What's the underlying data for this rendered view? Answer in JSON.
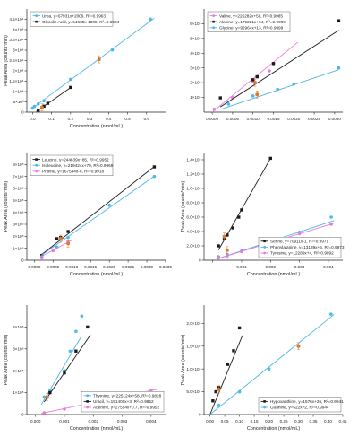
{
  "figure": {
    "background": "#ffffff",
    "marker_colors": {
      "black": "#1a1a1a",
      "cyan": "#4db8e8",
      "pink": "#e87be0",
      "orange": "#e2782d"
    }
  },
  "chart_data": [
    {
      "type": "scatter",
      "xlabel": "Concentration (nmol/mL)",
      "ylabel": "Peak Area (counts*min)",
      "xlim": [
        -0.03,
        0.7
      ],
      "ylim": [
        0,
        50000
      ],
      "x_ticks": [
        0.0,
        0.1,
        0.2,
        0.3,
        0.4,
        0.5,
        0.6
      ],
      "x_tick_labels": [
        "0.0",
        "0.1",
        "0.2",
        "0.3",
        "0.4",
        "0.5",
        "0.6"
      ],
      "y_ticks": [
        0,
        5000,
        10000,
        15000,
        20000,
        25000,
        30000,
        35000,
        40000,
        45000
      ],
      "y_tick_labels": [
        "0",
        "5×10³",
        "1×10⁴",
        "1.5×10⁴",
        "2×10⁴",
        "2.5×10⁴",
        "3×10⁴",
        "3.5×10⁴",
        "4×10⁴",
        "4.5×10⁴"
      ],
      "legend_position": "top-left",
      "series": [
        {
          "name": "Urea, y=67931x+2009, R²=0.9963",
          "color": "#4db8e8",
          "marker": "circle",
          "x": [
            0.0,
            0.01,
            0.03,
            0.06,
            0.2,
            0.35,
            0.42,
            0.62
          ],
          "y": [
            2000,
            2800,
            4000,
            5500,
            15900,
            25600,
            30200,
            45100
          ],
          "fit": [
            [
              -0.01,
              1330
            ],
            [
              0.64,
              45480
            ]
          ]
        },
        {
          "name": "Glycolic Acid, y=64635x-1005, R²=0.9984",
          "color": "#1a1a1a",
          "marker": "square",
          "x": [
            0.03,
            0.05,
            0.06,
            0.08,
            0.2
          ],
          "y": [
            900,
            2300,
            2900,
            4300,
            12000
          ],
          "fit": [
            [
              0.02,
              300
            ],
            [
              0.2,
              11900
            ]
          ]
        }
      ],
      "highlight_points": [
        {
          "x": 0.35,
          "y": 25600
        },
        {
          "x": 0.05,
          "y": 2300
        }
      ]
    },
    {
      "type": "scatter",
      "xlabel": "",
      "ylabel": "",
      "xlim": [
        -0.0002,
        0.0032
      ],
      "ylim": [
        0,
        700000
      ],
      "x_ticks": [
        0.0,
        0.0005,
        0.001,
        0.0015,
        0.002,
        0.0025,
        0.003
      ],
      "x_tick_labels": [
        "0.0000",
        "0.0005",
        "0.0010",
        "0.0015",
        "0.0020",
        "0.0025",
        "0.0030"
      ],
      "y_ticks": [
        100000,
        200000,
        300000,
        400000,
        500000,
        600000
      ],
      "y_tick_labels": [
        "1×10⁵",
        "2×10⁵",
        "3×10⁵",
        "4×10⁵",
        "5×10⁵",
        "6×10⁵"
      ],
      "legend_position": "top-left",
      "series": [
        {
          "name": "Valine, y=226282x+50, R²=0.9985",
          "color": "#e87be0",
          "marker": "circle",
          "x": [
            5e-05,
            0.0005,
            0.001,
            0.0014,
            0.0015
          ],
          "y": [
            20000,
            100000,
            210000,
            280000,
            330000
          ],
          "fit": [
            [
              0.0,
              50
            ],
            [
              0.0021,
              475250
            ]
          ]
        },
        {
          "name": "Alanine, y=179221x+64, R²=0.9999",
          "color": "#1a1a1a",
          "marker": "square",
          "x": [
            0.0002,
            0.001,
            0.0011,
            0.0015,
            0.0031
          ],
          "y": [
            97000,
            220000,
            240000,
            330000,
            620000
          ],
          "fit": [
            [
              0.0002,
              35900
            ],
            [
              0.0031,
              555650
            ]
          ]
        },
        {
          "name": "Glycine, y=92964x+13, R²=0.9999",
          "color": "#4db8e8",
          "marker": "circle",
          "x": [
            0.0004,
            0.001,
            0.0016,
            0.002,
            0.0031
          ],
          "y": [
            55000,
            110000,
            155000,
            190000,
            300000
          ],
          "fit": [
            [
              0.0002,
              18600
            ],
            [
              0.0031,
              288200
            ]
          ]
        }
      ],
      "highlight_points": [
        {
          "x": 0.00105,
          "y": 200000
        },
        {
          "x": 0.0011,
          "y": 120000
        }
      ]
    },
    {
      "type": "scatter",
      "xlabel": "Concentration (nmol/mL)",
      "ylabel": "Peak Area (counts*min)",
      "xlim": [
        -0.0002,
        0.0035
      ],
      "ylim": [
        0,
        900000
      ],
      "x_ticks": [
        0.0,
        0.0005,
        0.001,
        0.0015,
        0.002,
        0.0025,
        0.003,
        0.0035
      ],
      "x_tick_labels": [
        "0.0000",
        "0.0005",
        "0.0010",
        "0.0015",
        "0.0020",
        "0.0025",
        "0.0030",
        "0.0035"
      ],
      "y_ticks": [
        0,
        100000,
        200000,
        300000,
        400000,
        500000,
        600000,
        700000,
        800000
      ],
      "y_tick_labels": [
        "0",
        "1×10⁵",
        "2×10⁵",
        "3×10⁵",
        "4×10⁵",
        "5×10⁵",
        "6×10⁵",
        "7×10⁵",
        "8×10⁵"
      ],
      "legend_position": "top-left",
      "series": [
        {
          "name": "Leucine, y=244639x+85, R²=0.9952",
          "color": "#1a1a1a",
          "marker": "square",
          "x": [
            0.0002,
            0.0006,
            0.0007,
            0.0009,
            0.0032
          ],
          "y": [
            40000,
            180000,
            190000,
            240000,
            780000
          ],
          "fit": [
            [
              0.0002,
              49010
            ],
            [
              0.0032,
              782930
            ]
          ]
        },
        {
          "name": "Isoleucine, y=219424x+70, R²=0.9969",
          "color": "#4db8e8",
          "marker": "circle",
          "x": [
            0.0002,
            0.0006,
            0.0009,
            0.002,
            0.0032
          ],
          "y": [
            30000,
            110000,
            190000,
            460000,
            700000
          ],
          "fit": [
            [
              0.0002,
              43950
            ],
            [
              0.0032,
              702220
            ]
          ]
        },
        {
          "name": "Proline, y=167544x-6, R²=0.9918",
          "color": "#e87be0",
          "marker": "circle",
          "x": [
            0.0002,
            0.0005,
            0.0009
          ],
          "y": [
            20000,
            80000,
            160000
          ],
          "fit": [
            [
              0.0002,
              33500
            ],
            [
              0.001,
              167540
            ]
          ]
        }
      ],
      "highlight_points": [
        {
          "x": 0.0007,
          "y": 180000
        },
        {
          "x": 0.0009,
          "y": 140000
        }
      ]
    },
    {
      "type": "scatter",
      "xlabel": "Concentration (nmol/mL)",
      "ylabel": "Peak Area (counts*min)",
      "xlim": [
        -0.0003,
        0.0045
      ],
      "ylim": [
        0,
        150000
      ],
      "x_ticks": [
        0.0,
        0.001,
        0.002,
        0.003,
        0.004
      ],
      "x_tick_labels": [
        "",
        "0.001",
        "0.002",
        "0.003",
        "0.004"
      ],
      "y_ticks": [
        0,
        20000,
        40000,
        60000,
        80000,
        100000,
        120000,
        140000
      ],
      "y_tick_labels": [
        "0",
        "2.0×10⁴",
        "4.0×10⁴",
        "6.0×10⁴",
        "8.0×10⁴",
        "1.0×10⁵",
        "1.2×10⁵",
        "1.4×10⁵"
      ],
      "legend_position": "bottom-right",
      "series": [
        {
          "name": "Serine, y=70911x-1, R²=0.9971",
          "color": "#1a1a1a",
          "marker": "square",
          "x": [
            0.0002,
            0.0004,
            0.0005,
            0.0007,
            0.0009,
            0.001,
            0.002
          ],
          "y": [
            20000,
            30000,
            35000,
            45000,
            60000,
            70000,
            142000
          ],
          "fit": [
            [
              0.0002,
              14180
            ],
            [
              0.002,
              141820
            ]
          ]
        },
        {
          "name": "Phenylalanine, y=13139x+6, R²=0.9973",
          "color": "#4db8e8",
          "marker": "circle",
          "x": [
            0.0002,
            0.0005,
            0.001,
            0.002,
            0.003,
            0.0041
          ],
          "y": [
            5000,
            8000,
            13000,
            28000,
            39000,
            60000
          ],
          "fit": [
            [
              0.0002,
              2630
            ],
            [
              0.0042,
              55190
            ]
          ]
        },
        {
          "name": "Tyrosine, y=12289x+4, R²=0.9992",
          "color": "#e87be0",
          "marker": "circle",
          "x": [
            0.0002,
            0.0005,
            0.001,
            0.002,
            0.003,
            0.0041
          ],
          "y": [
            3000,
            6000,
            12000,
            25000,
            37000,
            50000
          ],
          "fit": [
            [
              0.0002,
              2460
            ],
            [
              0.0042,
              51620
            ]
          ]
        }
      ],
      "highlight_points": [
        {
          "x": 0.0004,
          "y": 33000
        },
        {
          "x": 0.0005,
          "y": 14000
        }
      ]
    },
    {
      "type": "scatter",
      "xlabel": "Concentration (nmol/mL)",
      "ylabel": "Peak Area (counts*min)",
      "xlim": [
        -0.0003,
        0.0045
      ],
      "ylim": [
        0,
        500000
      ],
      "x_ticks": [
        0.0,
        0.001,
        0.002,
        0.003,
        0.004
      ],
      "x_tick_labels": [
        "0.000",
        "0.001",
        "0.002",
        "0.003",
        "0.004"
      ],
      "y_ticks": [
        0,
        100000,
        200000,
        300000,
        400000
      ],
      "y_tick_labels": [
        "0",
        "1×10⁵",
        "2×10⁵",
        "3×10⁵",
        "4×10⁵"
      ],
      "legend_position": "bottom-right",
      "series": [
        {
          "name": "Thymine, y=225124x+58, R²=0.9828",
          "color": "#4db8e8",
          "marker": "circle",
          "x": [
            0.0003,
            0.0005,
            0.001,
            0.0012,
            0.0014,
            0.0016
          ],
          "y": [
            80000,
            110000,
            200000,
            290000,
            380000,
            450000
          ],
          "fit": [
            [
              0.0002,
              45080
            ],
            [
              0.0016,
              360250
            ]
          ]
        },
        {
          "name": "Uracil, y=191400x+3, R²=0.9852",
          "color": "#1a1a1a",
          "marker": "square",
          "x": [
            0.0004,
            0.0005,
            0.001,
            0.0014,
            0.0018
          ],
          "y": [
            80000,
            100000,
            190000,
            290000,
            400000
          ],
          "fit": [
            [
              0.0003,
              57420
            ],
            [
              0.0019,
              363660
            ]
          ]
        },
        {
          "name": "Adenine, y=27554x+0.7, R²=0.9952",
          "color": "#e87be0",
          "marker": "circle",
          "x": [
            0.0003,
            0.001,
            0.0017,
            0.004
          ],
          "y": [
            8000,
            25000,
            45000,
            110000
          ],
          "fit": [
            [
              0.0002,
              5510
            ],
            [
              0.0042,
              115730
            ]
          ]
        }
      ],
      "highlight_points": [
        {
          "x": 0.0004,
          "y": 80000
        },
        {
          "x": 0.0017,
          "y": 45000
        }
      ]
    },
    {
      "type": "scatter",
      "xlabel": "Concentration (nmol/mL)",
      "ylabel": "Peak Area (counts*min)",
      "xlim": [
        -0.02,
        0.45
      ],
      "ylim": [
        0,
        240000
      ],
      "x_ticks": [
        0.0,
        0.05,
        0.1,
        0.15,
        0.2,
        0.25,
        0.3,
        0.35,
        0.4,
        0.45
      ],
      "x_tick_labels": [
        "0.00",
        "0.05",
        "0.10",
        "0.15",
        "0.20",
        "0.25",
        "0.30",
        "0.35",
        "0.40",
        "0.45"
      ],
      "y_ticks": [
        0,
        50000,
        100000,
        150000,
        200000
      ],
      "y_tick_labels": [
        "0",
        "5.0×10⁴",
        "1.0×10⁵",
        "1.5×10⁵",
        "2.0×10⁵"
      ],
      "legend_position": "bottom-right",
      "series": [
        {
          "name": "Hypoxanthine, y=1576x+26, R²=0.9941",
          "color": "#1a1a1a",
          "marker": "square",
          "x": [
            0.01,
            0.02,
            0.03,
            0.06,
            0.08,
            0.1
          ],
          "y": [
            30000,
            50000,
            60000,
            110000,
            140000,
            190000
          ],
          "fit": [
            [
              0.0,
              26
            ],
            [
              0.11,
              173390
            ]
          ]
        },
        {
          "name": "Guanine, y=522x+2, R²=0.9944",
          "color": "#4db8e8",
          "marker": "circle",
          "x": [
            0.03,
            0.1,
            0.2,
            0.3,
            0.41
          ],
          "y": [
            20000,
            50000,
            100000,
            150000,
            220000
          ],
          "fit": [
            [
              0.0,
              2
            ],
            [
              0.42,
              219240
            ]
          ]
        }
      ],
      "highlight_points": [
        {
          "x": 0.03,
          "y": 55000
        },
        {
          "x": 0.3,
          "y": 150000
        }
      ]
    }
  ]
}
